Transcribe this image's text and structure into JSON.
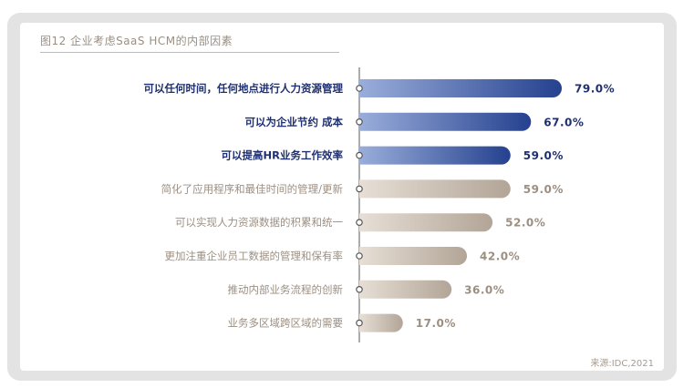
{
  "figure": {
    "title": "图12 企业考虑SaaS HCM的内部因素",
    "source": "来源:IDC,2021"
  },
  "colors": {
    "highlight_start": "#9aaedb",
    "highlight_end": "#25418f",
    "muted_start": "#e7dfd6",
    "muted_end": "#b2a597",
    "highlight_text": "#1f3070",
    "muted_text": "#9c8f82"
  },
  "chart_data": {
    "type": "bar",
    "orientation": "horizontal",
    "categories": [
      "可以任何时间，任何地点进行人力资源管理",
      "可以为企业节约 成本",
      "可以提高HR业务工作效率",
      "简化了应用程序和最佳时间的管理/更新",
      "可以实现人力资源数据的积累和统一",
      "更加注重企业员工数据的管理和保有率",
      "推动内部业务流程的创新",
      "业务多区域跨区域的需要"
    ],
    "values": [
      79.0,
      67.0,
      59.0,
      59.0,
      52.0,
      42.0,
      36.0,
      17.0
    ],
    "value_labels": [
      "79.0%",
      "67.0%",
      "59.0%",
      "59.0%",
      "52.0%",
      "42.0%",
      "36.0%",
      "17.0%"
    ],
    "highlighted": [
      true,
      true,
      true,
      false,
      false,
      false,
      false,
      false
    ],
    "unit": "%",
    "xlim": [
      0,
      100
    ]
  }
}
